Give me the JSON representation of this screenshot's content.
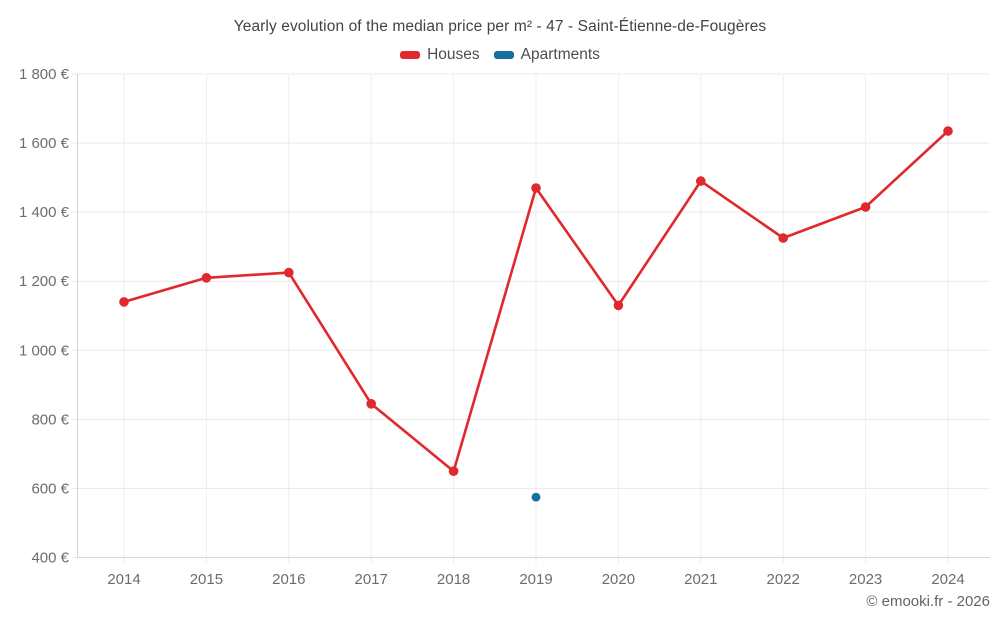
{
  "header": {
    "title": "Yearly evolution of the median price per m² - 47 - Saint-Étienne-de-Fougères"
  },
  "legend": [
    {
      "label": "Houses",
      "color": "#e0282d"
    },
    {
      "label": "Apartments",
      "color": "#1470a0"
    }
  ],
  "footer": {
    "credit": "© emooki.fr - 2026"
  },
  "chart_data": {
    "type": "line",
    "title": "Yearly evolution of the median price per m² - 47 - Saint-Étienne-de-Fougères",
    "categories": [
      "2014",
      "2015",
      "2016",
      "2017",
      "2018",
      "2019",
      "2020",
      "2021",
      "2022",
      "2023",
      "2024"
    ],
    "series": [
      {
        "name": "Houses",
        "color": "#e0282d",
        "values": [
          1140,
          1210,
          1225,
          845,
          650,
          1470,
          1130,
          1490,
          1325,
          1415,
          1635
        ]
      },
      {
        "name": "Apartments",
        "color": "#1470a0",
        "values": [
          null,
          null,
          null,
          null,
          null,
          575,
          null,
          null,
          null,
          null,
          null
        ]
      }
    ],
    "ylim": [
      400,
      1800
    ],
    "y_ticks": [
      {
        "value": 400,
        "label": "400 €"
      },
      {
        "value": 600,
        "label": "600 €"
      },
      {
        "value": 800,
        "label": "800 €"
      },
      {
        "value": 1000,
        "label": "1 000 €"
      },
      {
        "value": 1200,
        "label": "1 200 €"
      },
      {
        "value": 1400,
        "label": "1 400 €"
      },
      {
        "value": 1600,
        "label": "1 600 €"
      },
      {
        "value": 1800,
        "label": "1 800 €"
      }
    ],
    "xlabel": "",
    "ylabel": "",
    "grid": true,
    "legend_position": "top",
    "unit": "€"
  }
}
